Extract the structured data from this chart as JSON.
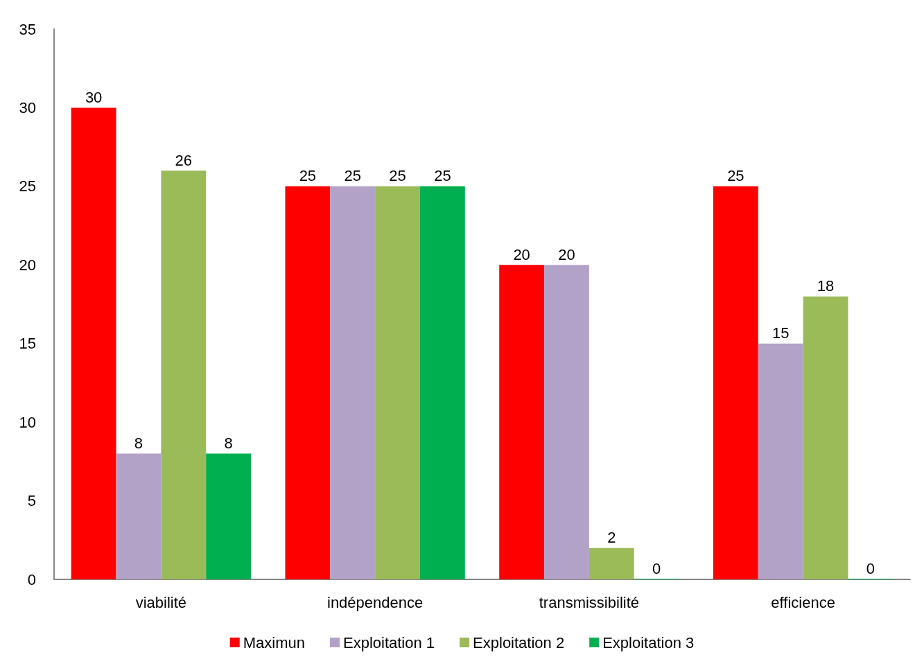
{
  "chart_data": {
    "type": "bar",
    "categories": [
      "viabilité",
      "indépendence",
      "transmissibilité",
      "efficience"
    ],
    "series": [
      {
        "name": "Maximun",
        "color": "#ff0000",
        "values": [
          30,
          25,
          20,
          25
        ]
      },
      {
        "name": "Exploitation 1",
        "color": "#b3a2c7",
        "values": [
          8,
          25,
          20,
          15
        ]
      },
      {
        "name": "Exploitation 2",
        "color": "#9bbb59",
        "values": [
          26,
          25,
          2,
          18
        ]
      },
      {
        "name": "Exploitation 3",
        "color": "#00b050",
        "values": [
          8,
          25,
          0,
          0
        ]
      }
    ],
    "ylim": [
      0,
      35
    ],
    "yticks": [
      0,
      5,
      10,
      15,
      20,
      25,
      30,
      35
    ],
    "data_labels": true,
    "grid": false,
    "legend": "bottom"
  }
}
